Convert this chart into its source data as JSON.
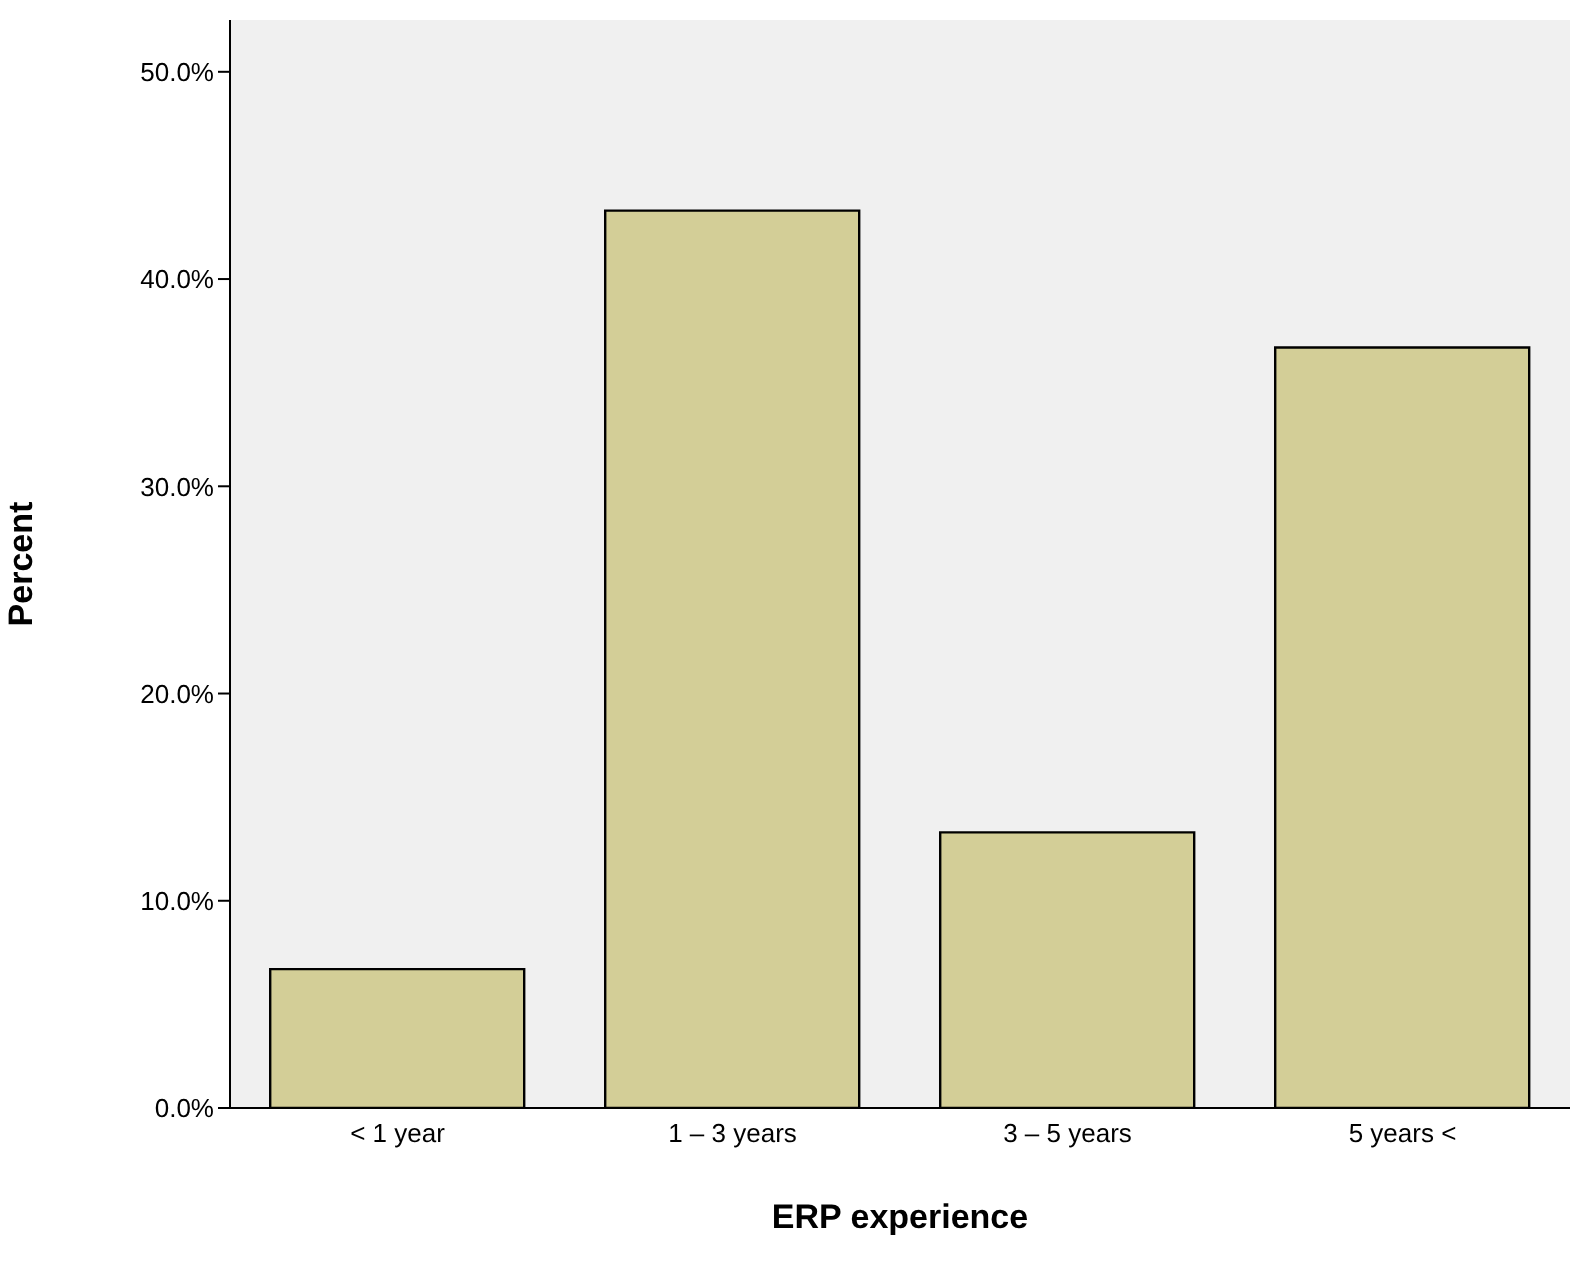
{
  "chart_data": {
    "type": "bar",
    "xlabel": "ERP experience",
    "ylabel": "Percent",
    "categories": [
      "< 1 year",
      "1 – 3 years",
      "3 – 5 years",
      "5 years <"
    ],
    "values": [
      6.7,
      43.3,
      13.3,
      36.7
    ],
    "color": "#d3ce97",
    "ylim": [
      0,
      52.5
    ],
    "yticks": [
      {
        "value": 0,
        "label": "0.0%"
      },
      {
        "value": 10,
        "label": "10.0%"
      },
      {
        "value": 20,
        "label": "20.0%"
      },
      {
        "value": 30,
        "label": "30.0%"
      },
      {
        "value": 40,
        "label": "40.0%"
      },
      {
        "value": 50,
        "label": "50.0%"
      }
    ],
    "grid": false,
    "legend": false
  }
}
